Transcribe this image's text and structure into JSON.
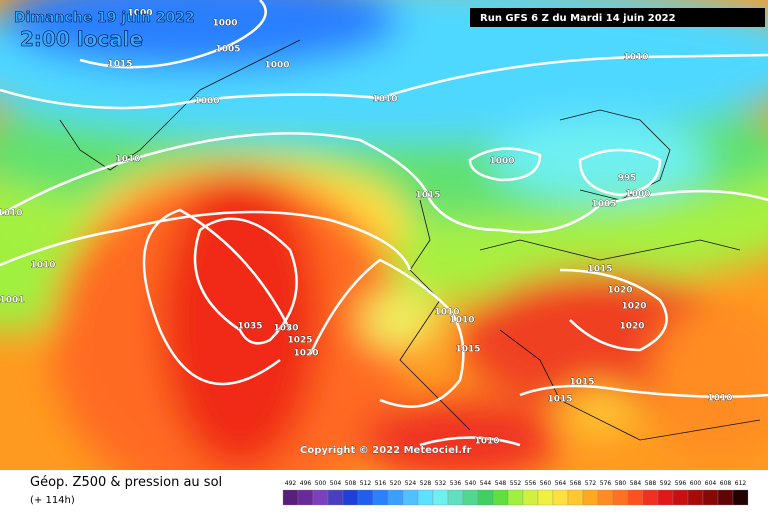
{
  "valid_date": "Dimanche 19 juin 2022",
  "valid_time": "2:00 locale",
  "run_label": "Run GFS 6 Z du Mardi 14 juin 2022",
  "copyright": "Copyright © 2022 Meteociel.fr",
  "product_title": "Géop. Z500 & pression au sol",
  "forecast_hour": "(+ 114h)",
  "pressure_labels": [
    "1000",
    "1000",
    "1005",
    "1015",
    "1000",
    "1000",
    "1010",
    "1010",
    "1010",
    "1010",
    "1010",
    "1001",
    "1000",
    "995",
    "1000",
    "1005",
    "1015",
    "1015",
    "1020",
    "1020",
    "1020",
    "1035",
    "1030",
    "1025",
    "1020",
    "1010",
    "1010",
    "1015",
    "1015",
    "1015",
    "1010",
    "1010"
  ],
  "scale": {
    "values": [
      492,
      496,
      500,
      504,
      508,
      512,
      516,
      520,
      524,
      528,
      532,
      536,
      540,
      544,
      548,
      552,
      556,
      560,
      564,
      568,
      572,
      576,
      580,
      584,
      588,
      592,
      596,
      600,
      604,
      608,
      612
    ],
    "colors": [
      "#5a1f7a",
      "#6a2a9a",
      "#7b3fbf",
      "#4a3fbf",
      "#1f3fd9",
      "#1f5ff0",
      "#2a80ff",
      "#3aa0ff",
      "#50c0ff",
      "#5ee0ff",
      "#6ff0f0",
      "#60e0c0",
      "#50d890",
      "#40d060",
      "#60e040",
      "#a0f040",
      "#d0f040",
      "#f0f040",
      "#ffe040",
      "#ffc830",
      "#ffa820",
      "#ff8c20",
      "#ff7020",
      "#ff5020",
      "#f03020",
      "#e01818",
      "#c81010",
      "#a80a0a",
      "#880808",
      "#600505",
      "#200000"
    ]
  }
}
